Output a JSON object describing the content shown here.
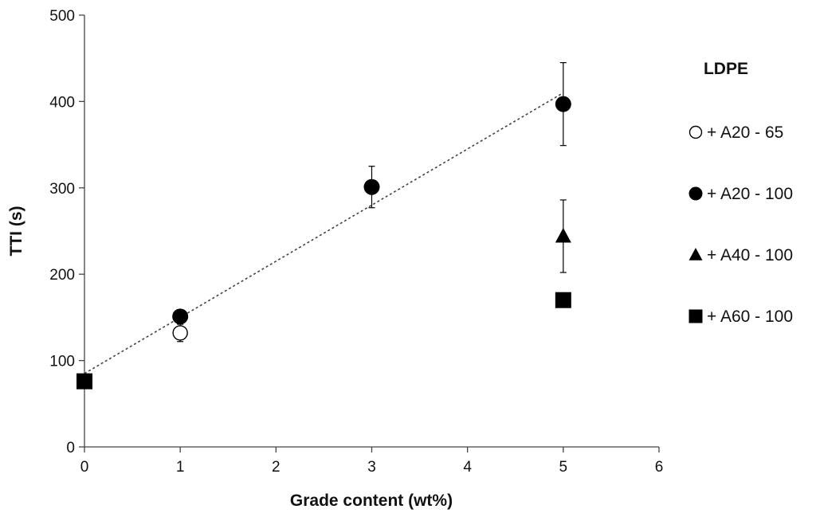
{
  "chart_data": {
    "type": "scatter",
    "title": "",
    "xlabel": "Grade content (wt%)",
    "ylabel": "TTI (s)",
    "xlim": [
      0,
      6
    ],
    "ylim": [
      0,
      500
    ],
    "xticks": [
      0,
      1,
      2,
      3,
      4,
      5,
      6
    ],
    "yticks": [
      0,
      100,
      200,
      300,
      400,
      500
    ],
    "grid": false,
    "legend_title": "LDPE",
    "legend_position": "right",
    "series": [
      {
        "name": "+ A20 - 65",
        "marker": "circle-open",
        "color": "#000000",
        "points": [
          {
            "x": 1,
            "y": 132,
            "err": 10
          }
        ]
      },
      {
        "name": "+ A20 - 100",
        "marker": "circle",
        "color": "#000000",
        "points": [
          {
            "x": 1,
            "y": 151,
            "err": 0
          },
          {
            "x": 3,
            "y": 301,
            "err": 24
          },
          {
            "x": 5,
            "y": 397,
            "err": 48
          }
        ]
      },
      {
        "name": "+ A40 - 100",
        "marker": "triangle",
        "color": "#000000",
        "points": [
          {
            "x": 5,
            "y": 244,
            "err": 42
          }
        ]
      },
      {
        "name": "+ A60 - 100",
        "marker": "square",
        "color": "#000000",
        "points": [
          {
            "x": 0,
            "y": 76,
            "err": 0
          },
          {
            "x": 5,
            "y": 170,
            "err": 0
          }
        ]
      }
    ],
    "trendline": {
      "style": "dotted",
      "color": "#444444",
      "x": [
        0,
        5
      ],
      "y": [
        85,
        410
      ]
    }
  }
}
